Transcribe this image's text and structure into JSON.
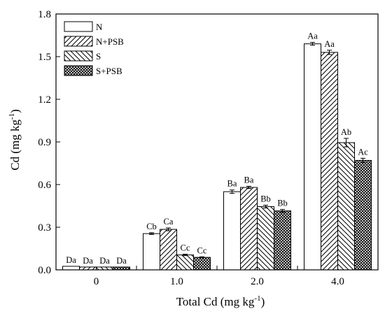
{
  "chart_data": {
    "type": "bar",
    "xlabel": {
      "main": "Total Cd (mg kg",
      "sup": "-1",
      "tail": ")"
    },
    "ylabel": {
      "main": "Cd (mg kg",
      "sup": "-1",
      "tail": ")"
    },
    "categories": [
      "0",
      "1.0",
      "2.0",
      "4.0"
    ],
    "ylim": [
      0,
      1.8
    ],
    "yticks": [
      "0.0",
      "0.3",
      "0.6",
      "0.9",
      "1.2",
      "1.5",
      "1.8"
    ],
    "grid": false,
    "legend_position": "top-left",
    "series": [
      {
        "name": "N",
        "pattern": "white",
        "values": [
          0.025,
          0.255,
          0.55,
          1.59
        ],
        "errors": [
          0.0,
          0.006,
          0.012,
          0.01
        ],
        "labels": [
          "Da",
          "Cb",
          "Ba",
          "Aa"
        ]
      },
      {
        "name": "N+PSB",
        "pattern": "hatch-forward",
        "values": [
          0.02,
          0.285,
          0.58,
          1.53
        ],
        "errors": [
          0.0,
          0.01,
          0.008,
          0.015
        ],
        "labels": [
          "Da",
          "Ca",
          "Ba",
          "Aa"
        ]
      },
      {
        "name": "S",
        "pattern": "hatch-back",
        "values": [
          0.02,
          0.105,
          0.445,
          0.895
        ],
        "errors": [
          0.0,
          0.005,
          0.01,
          0.03
        ],
        "labels": [
          "Da",
          "Cc",
          "Bb",
          "Ab"
        ]
      },
      {
        "name": "S+PSB",
        "pattern": "crosshatch",
        "values": [
          0.02,
          0.088,
          0.415,
          0.77
        ],
        "errors": [
          0.0,
          0.004,
          0.01,
          0.015
        ],
        "labels": [
          "Da",
          "Cc",
          "Bb",
          "Ac"
        ]
      }
    ]
  }
}
